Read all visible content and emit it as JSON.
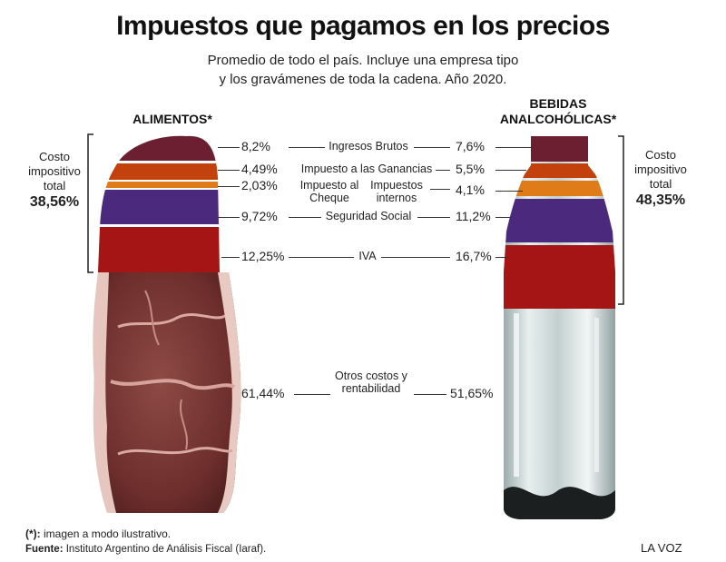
{
  "title": "Impuestos que pagamos en los precios",
  "subtitle_line1": "Promedio de todo el país. Incluye una empresa tipo",
  "subtitle_line2": "y los gravámenes de toda la cadena. Año 2020.",
  "left_header": "ALIMENTOS*",
  "right_header_line1": "BEBIDAS",
  "right_header_line2": "ANALCOHÓLICAS*",
  "left_total": {
    "line1": "Costo",
    "line2": "impositivo",
    "line3": "total",
    "value": "38,56%"
  },
  "right_total": {
    "line1": "Costo",
    "line2": "impositivo",
    "line3": "total",
    "value": "48,35%"
  },
  "footnote_mark": "(*):",
  "footnote_text": " imagen a modo ilustrativo.",
  "source_label": "Fuente:",
  "source_text": " Instituto Argentino de Análisis Fiscal (Iaraf).",
  "brand": "LA VOZ",
  "colors": {
    "ingresos_brutos": "#6b1f30",
    "ganancias": "#c2410c",
    "cheque_internos": "#e07b1a",
    "seguridad_social": "#4b2a7e",
    "iva": "#a51515"
  },
  "chart_data": {
    "type": "table",
    "columns": [
      "ALIMENTOS*",
      "BEBIDAS ANALCOHÓLICAS*"
    ],
    "rows": [
      {
        "label": "Ingresos Brutos",
        "alimentos": "8,2%",
        "bebidas": "7,6%"
      },
      {
        "label": "Impuesto a las Ganancias",
        "alimentos": "4,49%",
        "bebidas": "5,5%"
      },
      {
        "label_left": "Impuesto al Cheque",
        "label_right": "Impuestos internos",
        "alimentos": "2,03%",
        "bebidas": "4,1%"
      },
      {
        "label": "Seguridad Social",
        "alimentos": "9,72%",
        "bebidas": "11,2%"
      },
      {
        "label": "IVA",
        "alimentos": "12,25%",
        "bebidas": "16,7%"
      },
      {
        "label": "Otros costos y rentabilidad",
        "alimentos": "61,44%",
        "bebidas": "51,65%"
      }
    ]
  }
}
